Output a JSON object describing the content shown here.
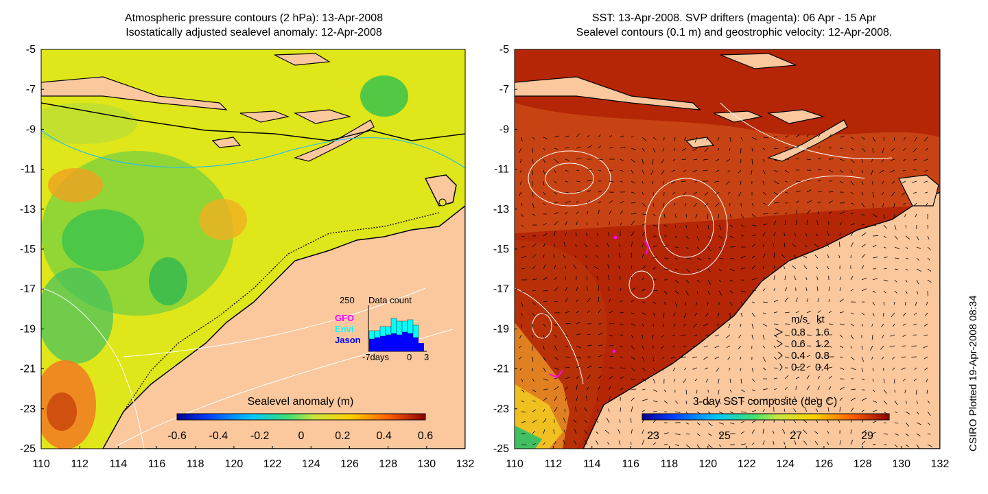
{
  "left_panel": {
    "title_line1": "Atmospheric pressure contours (2 hPa): 13-Apr-2008",
    "title_line2": "Isostatically adjusted sealevel anomaly: 12-Apr-2008",
    "colorbar_label": "Sealevel anomaly (m)",
    "colorbar_ticks": [
      "-0.6",
      "-0.4",
      "-0.2",
      "0",
      "0.2",
      "0.4",
      "0.6"
    ],
    "inset": {
      "max_label": "250",
      "title": "Data count",
      "legend": [
        {
          "name": "GFO",
          "color": "#ff00ff"
        },
        {
          "name": "Envi",
          "color": "#00ffff"
        },
        {
          "name": "Jason",
          "color": "#0000ff"
        }
      ],
      "x_labels": [
        "-7days",
        "0",
        "3"
      ]
    }
  },
  "right_panel": {
    "title_line1": "SST: 13-Apr-2008. SVP drifters (magenta): 06 Apr - 15 Apr",
    "title_line2": "Sealevel contours (0.1 m) and geostrophic velocity: 12-Apr-2008.",
    "colorbar_label": "3-day SST composite (deg C)",
    "colorbar_ticks": [
      "23",
      "25",
      "27",
      "29"
    ],
    "velocity_legend": {
      "header": [
        "m/s",
        "kt"
      ],
      "rows": [
        [
          "0.8",
          "1.6"
        ],
        [
          "0.6",
          "1.2"
        ],
        [
          "0.4",
          "0.8"
        ],
        [
          "0.2",
          "0.4"
        ]
      ]
    }
  },
  "axes": {
    "y_ticks": [
      "-5",
      "-7",
      "-9",
      "-11",
      "-13",
      "-15",
      "-17",
      "-19",
      "-21",
      "-23",
      "-25"
    ],
    "x_ticks": [
      "110",
      "112",
      "114",
      "116",
      "118",
      "120",
      "122",
      "124",
      "126",
      "128",
      "130",
      "132"
    ]
  },
  "credit": "CSIRO Plotted 19-Apr-2008 08:34",
  "colors": {
    "land": "#fbc89e",
    "ocean_left": "#dfe61a",
    "ocean_right": "#b42606",
    "ocean_right_south": "#d05510"
  }
}
